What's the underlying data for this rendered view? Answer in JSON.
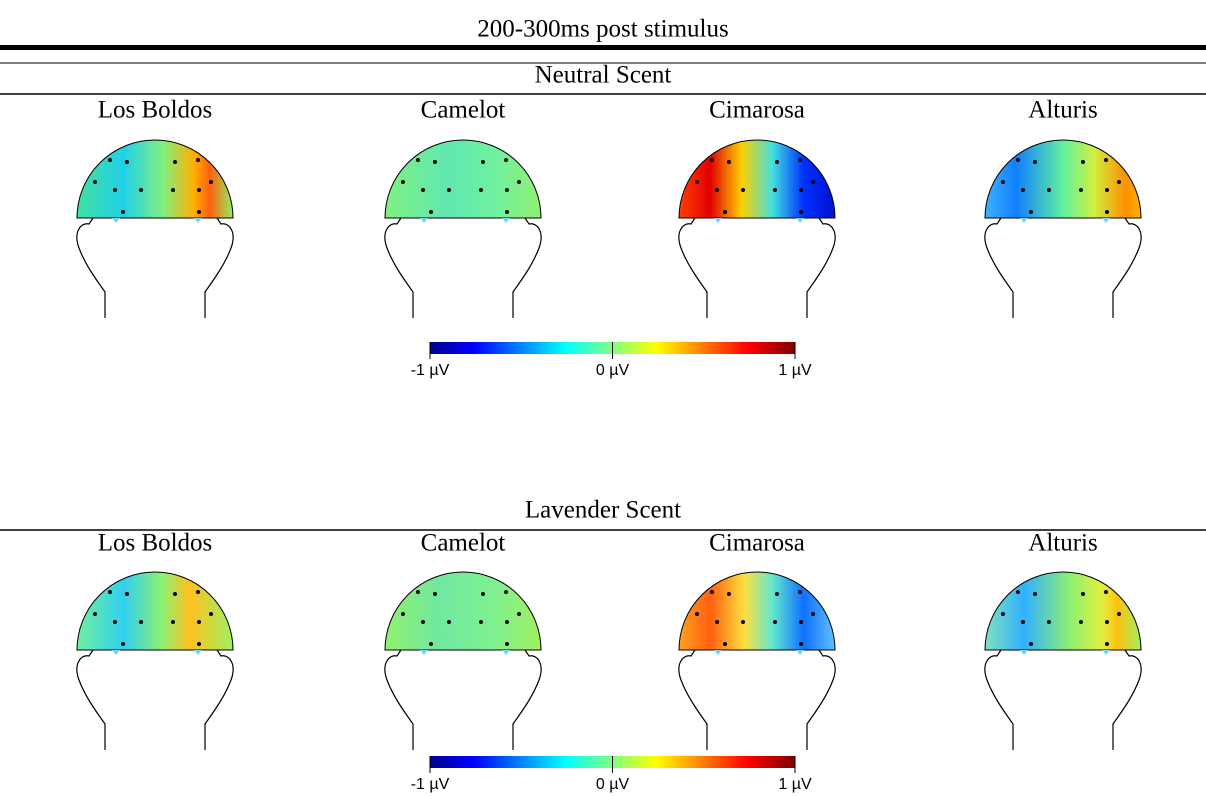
{
  "title": "200-300ms post stimulus",
  "sections": [
    {
      "label": "Neutral Scent",
      "panels": [
        "Los Boldos",
        "Camelot",
        "Cimarosa",
        "Alturis"
      ],
      "colorbar": {
        "ticks": [
          {
            "value": -1,
            "label": "-1 µV"
          },
          {
            "value": 0,
            "label": "0 µV"
          },
          {
            "value": 1,
            "label": "1 µV"
          }
        ]
      }
    },
    {
      "label": "Lavender Scent",
      "panels": [
        "Los Boldos",
        "Camelot",
        "Cimarosa",
        "Alturis"
      ],
      "colorbar": {
        "ticks": [
          {
            "value": -1,
            "label": "-1 µV"
          },
          {
            "value": 0,
            "label": "0 µV"
          },
          {
            "value": 1,
            "label": "1 µV"
          }
        ]
      }
    }
  ]
}
